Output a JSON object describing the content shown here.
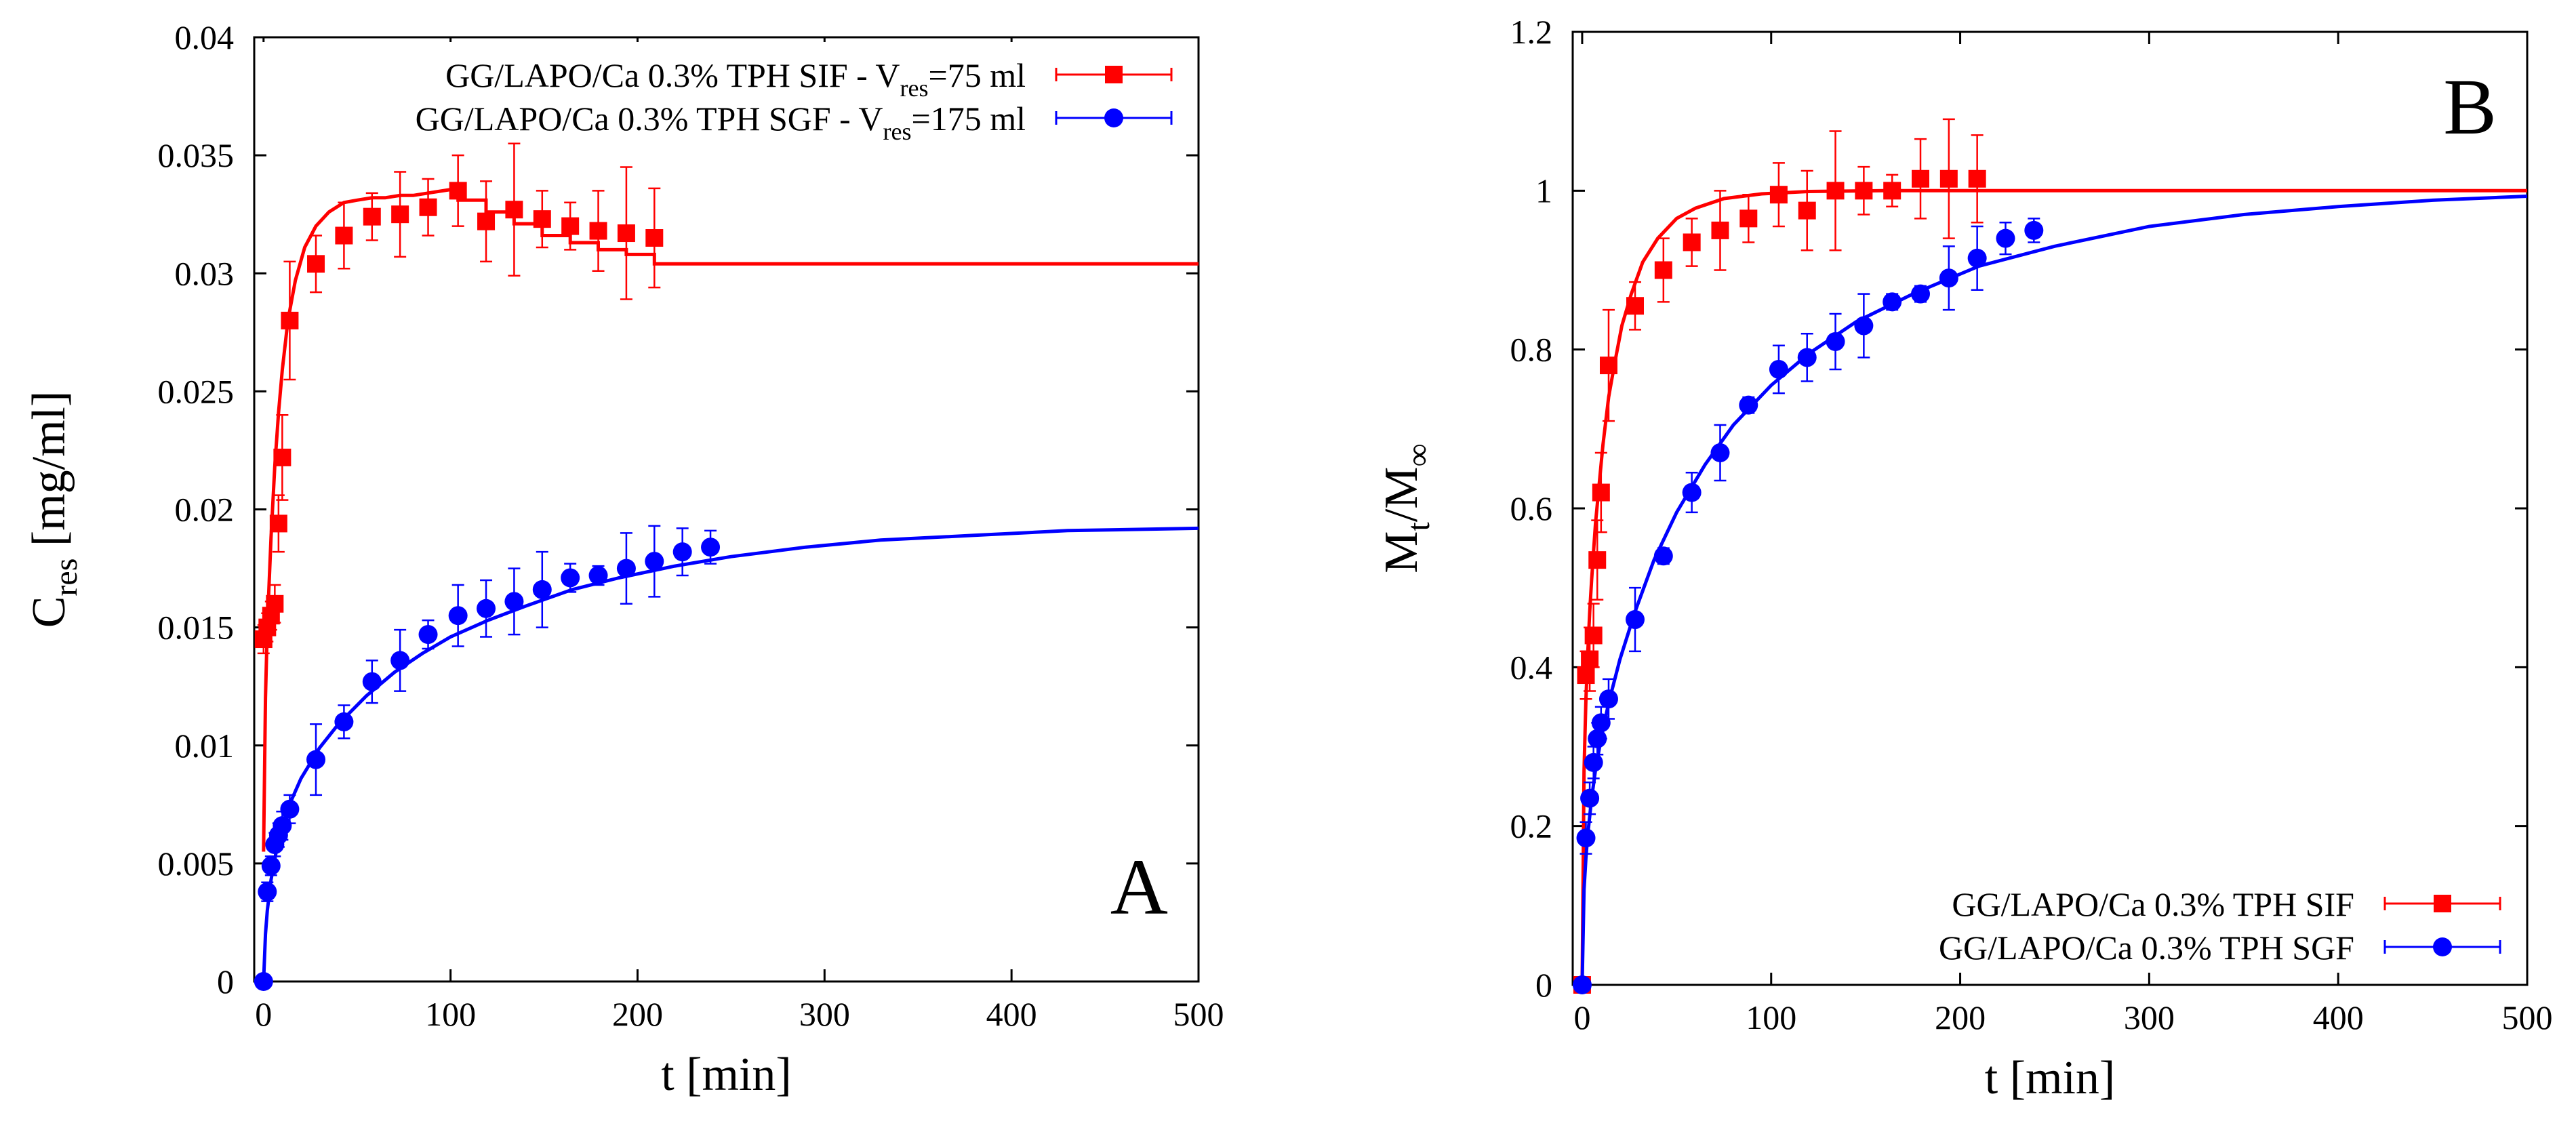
{
  "colors": {
    "sif": "#ff0000",
    "sgf": "#0000ff",
    "axis": "#000000"
  },
  "chart_data": [
    {
      "type": "scatter",
      "panel_label": "A",
      "xlabel": "t [min]",
      "ylabel_main": "C",
      "ylabel_sub": "res",
      "ylabel_unit": " [mg/ml]",
      "xlim": [
        -5,
        500
      ],
      "ylim": [
        0,
        0.04
      ],
      "xticks": [
        0,
        100,
        200,
        300,
        400,
        500
      ],
      "xtick_labels": [
        "0",
        "100",
        "200",
        "300",
        "400",
        "500"
      ],
      "yticks": [
        0,
        0.005,
        0.01,
        0.015,
        0.02,
        0.025,
        0.03,
        0.035,
        0.04
      ],
      "ytick_labels": [
        "0",
        "0.005",
        "0.01",
        "0.015",
        "0.02",
        "0.025",
        "0.03",
        "0.035",
        "0.04"
      ],
      "legend": "top-right",
      "series": [
        {
          "key": "sif",
          "legend_main": "GG/LAPO/Ca 0.3% TPH SIF - V",
          "legend_sub": "res",
          "legend_tail": "=75 ml",
          "marker": "square",
          "x": [
            0,
            2,
            4,
            6,
            8,
            10,
            14,
            28,
            43,
            58,
            73,
            88,
            104,
            119,
            134,
            149,
            164,
            179,
            194,
            209
          ],
          "y": [
            0.0145,
            0.015,
            0.0155,
            0.016,
            0.0194,
            0.0222,
            0.028,
            0.0304,
            0.0316,
            0.0324,
            0.0325,
            0.0328,
            0.0335,
            0.0322,
            0.0327,
            0.0323,
            0.032,
            0.0318,
            0.0317,
            0.0315
          ],
          "err": [
            0.0006,
            0.0006,
            0.0006,
            0.0008,
            0.0012,
            0.0018,
            0.0025,
            0.0012,
            0.0014,
            0.001,
            0.0018,
            0.0012,
            0.0015,
            0.0017,
            0.0028,
            0.0012,
            0.001,
            0.0017,
            0.0028,
            0.0021
          ],
          "fit_x": [
            0,
            1,
            2,
            4,
            6,
            8,
            10,
            13,
            17,
            22,
            28,
            35,
            43,
            50,
            58,
            65,
            73,
            80,
            88,
            96,
            104,
            104,
            119,
            119,
            134,
            134,
            149,
            149,
            164,
            164,
            179,
            179,
            194,
            194,
            209,
            209,
            300,
            400,
            500
          ],
          "fit_y": [
            0.0055,
            0.012,
            0.015,
            0.0188,
            0.0218,
            0.0241,
            0.0259,
            0.028,
            0.0297,
            0.0311,
            0.032,
            0.0326,
            0.033,
            0.0331,
            0.0332,
            0.0332,
            0.0333,
            0.0333,
            0.0334,
            0.0335,
            0.0336,
            0.0331,
            0.0331,
            0.0326,
            0.0326,
            0.0321,
            0.0321,
            0.0316,
            0.0316,
            0.0313,
            0.0313,
            0.031,
            0.031,
            0.0308,
            0.0308,
            0.0304,
            0.0304,
            0.0304,
            0.0304
          ]
        },
        {
          "key": "sgf",
          "legend_main": "GG/LAPO/Ca 0.3% TPH SGF - V",
          "legend_sub": "res",
          "legend_tail": "=175 ml",
          "marker": "circle",
          "x": [
            0,
            2,
            4,
            6,
            8,
            10,
            14,
            28,
            43,
            58,
            73,
            88,
            104,
            119,
            134,
            149,
            164,
            179,
            194,
            209,
            224,
            239
          ],
          "y": [
            0.0,
            0.0038,
            0.0049,
            0.0058,
            0.0062,
            0.0066,
            0.0073,
            0.0094,
            0.011,
            0.0127,
            0.0136,
            0.0147,
            0.0155,
            0.0158,
            0.0161,
            0.0166,
            0.0171,
            0.0172,
            0.0175,
            0.0178,
            0.0182,
            0.0184
          ],
          "err": [
            0.0,
            0.0004,
            0.0004,
            0.0005,
            0.0005,
            0.0006,
            0.0006,
            0.0015,
            0.0007,
            0.0009,
            0.0013,
            0.0006,
            0.0013,
            0.0012,
            0.0014,
            0.0016,
            0.0006,
            0.0004,
            0.0015,
            0.0015,
            0.001,
            0.0007
          ],
          "fit_x": [
            0,
            1,
            2,
            4,
            7,
            10,
            15,
            20,
            30,
            40,
            55,
            70,
            85,
            100,
            120,
            140,
            165,
            190,
            220,
            250,
            290,
            330,
            380,
            430,
            500
          ],
          "fit_y": [
            0.0,
            0.002,
            0.003,
            0.0043,
            0.0056,
            0.0065,
            0.0077,
            0.0086,
            0.0099,
            0.0109,
            0.0121,
            0.0131,
            0.0139,
            0.0146,
            0.0153,
            0.0159,
            0.0166,
            0.0171,
            0.0176,
            0.018,
            0.0184,
            0.0187,
            0.0189,
            0.0191,
            0.0192
          ]
        }
      ]
    },
    {
      "type": "scatter",
      "panel_label": "B",
      "xlabel": "t [min]",
      "ylabel_main": "M",
      "ylabel_sub": "t",
      "ylabel_mid": "/M",
      "ylabel_sub2": "∞",
      "xlim": [
        -5,
        500
      ],
      "ylim": [
        0,
        1.2
      ],
      "xticks": [
        0,
        100,
        200,
        300,
        400,
        500
      ],
      "xtick_labels": [
        "0",
        "100",
        "200",
        "300",
        "400",
        "500"
      ],
      "yticks": [
        0,
        0.2,
        0.4,
        0.6,
        0.8,
        1.0,
        1.2
      ],
      "ytick_labels": [
        "0",
        "0.2",
        "0.4",
        "0.6",
        "0.8",
        "1",
        "1.2"
      ],
      "legend": "bottom-right",
      "series": [
        {
          "key": "sif",
          "legend_main": "GG/LAPO/Ca 0.3% TPH SIF",
          "marker": "square",
          "x": [
            0,
            2,
            4,
            6,
            8,
            10,
            14,
            28,
            43,
            58,
            73,
            88,
            104,
            119,
            134,
            149,
            164,
            179,
            194,
            209
          ],
          "y": [
            0.0,
            0.39,
            0.41,
            0.44,
            0.535,
            0.62,
            0.78,
            0.855,
            0.9,
            0.935,
            0.95,
            0.965,
            0.995,
            0.975,
            1.0,
            1.0,
            1.0,
            1.015,
            1.015,
            1.015
          ],
          "err": [
            0.0,
            0.03,
            0.04,
            0.04,
            0.05,
            0.05,
            0.07,
            0.03,
            0.04,
            0.03,
            0.05,
            0.03,
            0.04,
            0.05,
            0.075,
            0.03,
            0.02,
            0.05,
            0.075,
            0.055
          ],
          "fit_x": [
            0,
            1,
            2,
            3,
            4,
            5,
            7,
            9,
            11,
            14,
            17,
            21,
            26,
            32,
            40,
            50,
            60,
            75,
            95,
            120,
            160,
            220,
            300,
            400,
            500
          ],
          "fit_y": [
            0.0,
            0.27,
            0.36,
            0.42,
            0.47,
            0.51,
            0.58,
            0.63,
            0.68,
            0.74,
            0.78,
            0.83,
            0.87,
            0.91,
            0.94,
            0.965,
            0.978,
            0.99,
            0.996,
            0.999,
            1.0,
            1.0,
            1.0,
            1.0,
            1.0
          ]
        },
        {
          "key": "sgf",
          "legend_main": "GG/LAPO/Ca 0.3% TPH SGF",
          "marker": "circle",
          "x": [
            0,
            2,
            4,
            6,
            8,
            10,
            14,
            28,
            43,
            58,
            73,
            88,
            104,
            119,
            134,
            149,
            164,
            179,
            194,
            209,
            224,
            239
          ],
          "y": [
            0.0,
            0.185,
            0.235,
            0.28,
            0.31,
            0.33,
            0.36,
            0.46,
            0.54,
            0.62,
            0.67,
            0.73,
            0.775,
            0.79,
            0.81,
            0.83,
            0.86,
            0.87,
            0.89,
            0.915,
            0.94,
            0.95
          ],
          "err": [
            0.0,
            0.02,
            0.02,
            0.02,
            0.02,
            0.02,
            0.025,
            0.04,
            0.01,
            0.025,
            0.035,
            0.01,
            0.03,
            0.03,
            0.035,
            0.04,
            0.01,
            0.01,
            0.04,
            0.04,
            0.02,
            0.015
          ],
          "fit_x": [
            0,
            1,
            2,
            3,
            5,
            7,
            10,
            14,
            20,
            28,
            38,
            50,
            65,
            80,
            100,
            120,
            145,
            175,
            210,
            250,
            300,
            350,
            400,
            450,
            500
          ],
          "fit_y": [
            0.0,
            0.12,
            0.16,
            0.19,
            0.235,
            0.27,
            0.31,
            0.355,
            0.41,
            0.47,
            0.535,
            0.595,
            0.655,
            0.705,
            0.755,
            0.795,
            0.835,
            0.87,
            0.905,
            0.93,
            0.955,
            0.97,
            0.98,
            0.988,
            0.993
          ]
        }
      ]
    }
  ]
}
